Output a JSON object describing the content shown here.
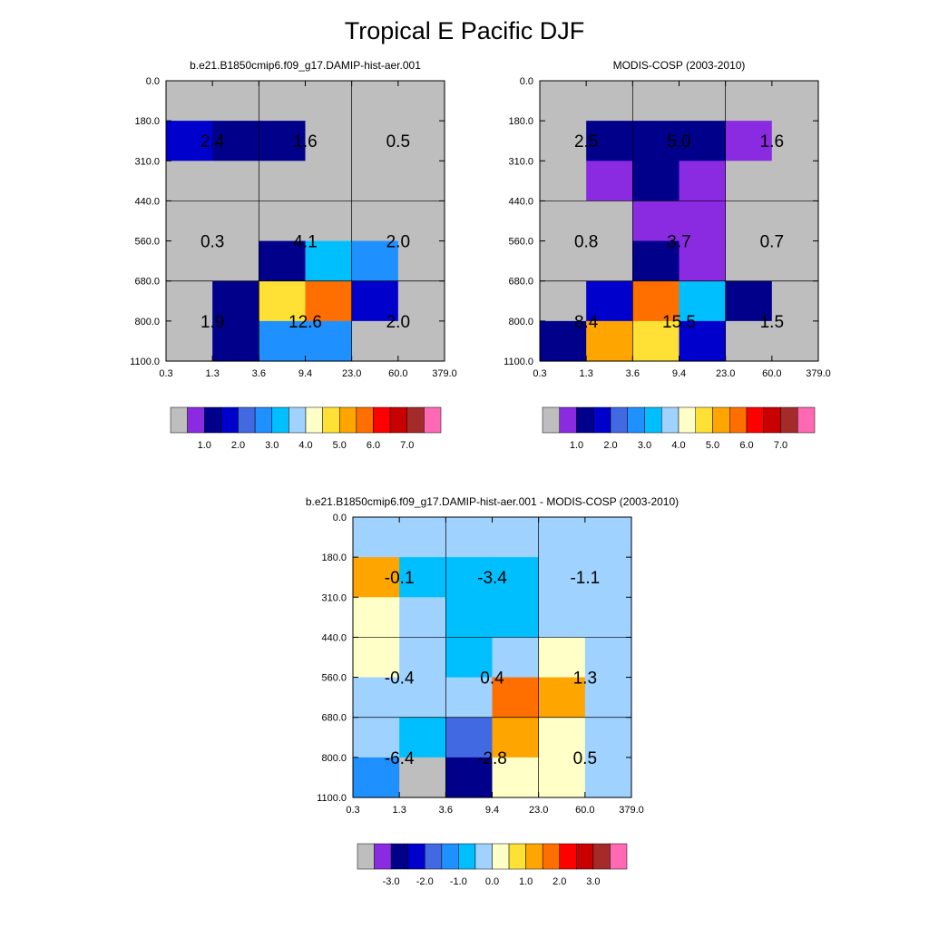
{
  "figure_title": "Tropical E Pacific DJF",
  "chart_data": [
    {
      "type": "heatmap",
      "panel": "model",
      "title": "b.e21.B1850cmip6.f09_g17.DAMIP-hist-aer.001",
      "x_ticks": [
        "0.3",
        "1.3",
        "3.6",
        "9.4",
        "23.0",
        "60.0",
        "379.0"
      ],
      "y_ticks": [
        "0.0",
        "180.0",
        "310.0",
        "440.0",
        "560.0",
        "680.0",
        "800.0",
        "1100.0"
      ],
      "cells": [
        [
          0,
          0,
          0,
          0,
          0,
          0
        ],
        [
          3,
          2,
          2,
          0,
          0,
          0
        ],
        [
          0,
          0,
          0,
          0,
          0,
          0
        ],
        [
          0,
          0,
          0,
          0,
          0,
          0
        ],
        [
          0,
          0,
          2,
          6,
          5,
          0
        ],
        [
          0,
          2,
          9,
          11,
          3,
          0
        ],
        [
          0,
          2,
          5,
          5,
          0,
          0
        ]
      ],
      "block_labels": [
        [
          "2.4",
          "1.6",
          "0.5"
        ],
        [
          "0.3",
          "4.1",
          "2.0"
        ],
        [
          "1.9",
          "12.6",
          "2.0"
        ]
      ],
      "colorbar": {
        "colors": [
          "#bebebe",
          "#8a2be2",
          "#00008b",
          "#0000cd",
          "#4169e1",
          "#1e90ff",
          "#00bfff",
          "#a0d2ff",
          "#ffffc8",
          "#ffe135",
          "#ffa500",
          "#ff6f00",
          "#ff0000",
          "#c80000",
          "#a52a2a",
          "#ff69b4"
        ],
        "labels": [
          "1.0",
          "2.0",
          "3.0",
          "4.0",
          "5.0",
          "6.0",
          "7.0"
        ]
      }
    },
    {
      "type": "heatmap",
      "panel": "obs",
      "title": "MODIS-COSP (2003-2010)",
      "x_ticks": [
        "0.3",
        "1.3",
        "3.6",
        "9.4",
        "23.0",
        "60.0",
        "379.0"
      ],
      "y_ticks": [
        "0.0",
        "180.0",
        "310.0",
        "440.0",
        "560.0",
        "680.0",
        "800.0",
        "1100.0"
      ],
      "cells": [
        [
          0,
          0,
          0,
          0,
          0,
          0
        ],
        [
          0,
          2,
          2,
          2,
          1,
          0
        ],
        [
          0,
          1,
          2,
          1,
          0,
          0
        ],
        [
          0,
          0,
          1,
          1,
          0,
          0
        ],
        [
          0,
          0,
          2,
          1,
          0,
          0
        ],
        [
          0,
          3,
          11,
          6,
          2,
          0
        ],
        [
          2,
          10,
          9,
          3,
          0,
          0
        ]
      ],
      "block_labels": [
        [
          "2.5",
          "5.0",
          "1.6"
        ],
        [
          "0.8",
          "3.7",
          "0.7"
        ],
        [
          "8.4",
          "15.5",
          "1.5"
        ]
      ],
      "colorbar": {
        "colors": [
          "#bebebe",
          "#8a2be2",
          "#00008b",
          "#0000cd",
          "#4169e1",
          "#1e90ff",
          "#00bfff",
          "#a0d2ff",
          "#ffffc8",
          "#ffe135",
          "#ffa500",
          "#ff6f00",
          "#ff0000",
          "#c80000",
          "#a52a2a",
          "#ff69b4"
        ],
        "labels": [
          "1.0",
          "2.0",
          "3.0",
          "4.0",
          "5.0",
          "6.0",
          "7.0"
        ]
      }
    },
    {
      "type": "heatmap",
      "panel": "difference",
      "title": "b.e21.B1850cmip6.f09_g17.DAMIP-hist-aer.001 - MODIS-COSP (2003-2010)",
      "x_ticks": [
        "0.3",
        "1.3",
        "3.6",
        "9.4",
        "23.0",
        "60.0",
        "379.0"
      ],
      "y_ticks": [
        "0.0",
        "180.0",
        "310.0",
        "440.0",
        "560.0",
        "680.0",
        "800.0",
        "1100.0"
      ],
      "cells": [
        [
          7,
          7,
          7,
          7,
          7,
          7
        ],
        [
          10,
          6,
          6,
          6,
          7,
          7
        ],
        [
          8,
          7,
          6,
          6,
          7,
          7
        ],
        [
          8,
          7,
          6,
          7,
          8,
          7
        ],
        [
          7,
          7,
          7,
          11,
          10,
          7
        ],
        [
          7,
          6,
          4,
          10,
          8,
          7
        ],
        [
          5,
          0,
          2,
          8,
          8,
          7
        ]
      ],
      "block_labels": [
        [
          "-0.1",
          "-3.4",
          "-1.1"
        ],
        [
          "-0.4",
          "0.4",
          "1.3"
        ],
        [
          "-6.4",
          "-2.8",
          "0.5"
        ]
      ],
      "colorbar": {
        "colors": [
          "#bebebe",
          "#8a2be2",
          "#00008b",
          "#0000cd",
          "#4169e1",
          "#1e90ff",
          "#00bfff",
          "#a0d2ff",
          "#ffffc8",
          "#ffe135",
          "#ffa500",
          "#ff6f00",
          "#ff0000",
          "#c80000",
          "#a52a2a",
          "#ff69b4"
        ],
        "labels": [
          "-3.0",
          "-2.0",
          "-1.0",
          "0.0",
          "1.0",
          "2.0",
          "3.0"
        ]
      }
    }
  ]
}
